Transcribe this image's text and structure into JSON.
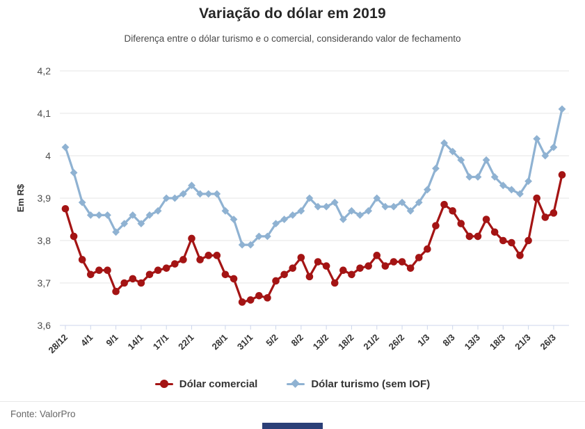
{
  "header": {
    "title": "Variação do dólar em 2019",
    "subtitle": "Diferença entre o dólar turismo e o comercial, considerando valor de fechamento"
  },
  "chart_data": {
    "type": "line",
    "title": "Variação do dólar em 2019",
    "subtitle": "Diferença entre o dólar turismo e o comercial, considerando valor de fechamento",
    "xlabel": "",
    "ylabel": "Em R$",
    "ylim": [
      3.6,
      4.2
    ],
    "grid": true,
    "legend_position": "bottom-center",
    "y_ticks": [
      3.6,
      3.7,
      3.8,
      3.9,
      4,
      4.1,
      4.2
    ],
    "y_tick_labels": [
      "3,6",
      "3,7",
      "3,8",
      "3,9",
      "4",
      "4,1",
      "4,2"
    ],
    "x_ticks": [
      {
        "index": 0,
        "label": "28/12"
      },
      {
        "index": 3,
        "label": "4/1"
      },
      {
        "index": 6,
        "label": "9/1"
      },
      {
        "index": 9,
        "label": "14/1"
      },
      {
        "index": 12,
        "label": "17/1"
      },
      {
        "index": 15,
        "label": "22/1"
      },
      {
        "index": 19,
        "label": "28/1"
      },
      {
        "index": 22,
        "label": "31/1"
      },
      {
        "index": 25,
        "label": "5/2"
      },
      {
        "index": 28,
        "label": "8/2"
      },
      {
        "index": 31,
        "label": "13/2"
      },
      {
        "index": 34,
        "label": "18/2"
      },
      {
        "index": 37,
        "label": "21/2"
      },
      {
        "index": 40,
        "label": "26/2"
      },
      {
        "index": 43,
        "label": "1/3"
      },
      {
        "index": 46,
        "label": "8/3"
      },
      {
        "index": 49,
        "label": "13/3"
      },
      {
        "index": 52,
        "label": "18/3"
      },
      {
        "index": 55,
        "label": "21/3"
      },
      {
        "index": 58,
        "label": "26/3"
      }
    ],
    "series": [
      {
        "name": "Dólar comercial",
        "color": "#a41414",
        "marker": "circle",
        "values": [
          3.875,
          3.81,
          3.755,
          3.72,
          3.73,
          3.73,
          3.68,
          3.7,
          3.71,
          3.7,
          3.72,
          3.73,
          3.735,
          3.745,
          3.755,
          3.805,
          3.755,
          3.765,
          3.765,
          3.72,
          3.71,
          3.655,
          3.66,
          3.67,
          3.665,
          3.705,
          3.72,
          3.735,
          3.76,
          3.715,
          3.75,
          3.74,
          3.7,
          3.73,
          3.72,
          3.735,
          3.74,
          3.765,
          3.74,
          3.75,
          3.75,
          3.735,
          3.76,
          3.78,
          3.835,
          3.885,
          3.87,
          3.84,
          3.81,
          3.81,
          3.85,
          3.82,
          3.8,
          3.795,
          3.765,
          3.8,
          3.9,
          3.855,
          3.865,
          3.955
        ]
      },
      {
        "name": "Dólar turismo (sem IOF)",
        "color": "#8fb2d2",
        "marker": "diamond",
        "values": [
          4.02,
          3.96,
          3.89,
          3.86,
          3.86,
          3.86,
          3.82,
          3.84,
          3.86,
          3.84,
          3.86,
          3.87,
          3.9,
          3.9,
          3.91,
          3.93,
          3.91,
          3.91,
          3.91,
          3.87,
          3.85,
          3.79,
          3.79,
          3.81,
          3.81,
          3.84,
          3.85,
          3.86,
          3.87,
          3.9,
          3.88,
          3.88,
          3.89,
          3.85,
          3.87,
          3.86,
          3.87,
          3.9,
          3.88,
          3.88,
          3.89,
          3.87,
          3.89,
          3.92,
          3.97,
          4.03,
          4.01,
          3.99,
          3.95,
          3.95,
          3.99,
          3.95,
          3.93,
          3.92,
          3.91,
          3.94,
          4.04,
          4.0,
          4.02,
          4.11
        ]
      }
    ],
    "styles": {
      "gridline_color": "#e6e6e6",
      "axis_line_color": "#ccd6eb",
      "tick_color": "#ccd6eb",
      "x_label_color": "#333333",
      "y_label_color": "#4d4d4d",
      "axis_title_color": "#333333"
    }
  },
  "footer": {
    "source": "Fonte: ValorPro",
    "brand_bar_color": "#2b3f77"
  }
}
